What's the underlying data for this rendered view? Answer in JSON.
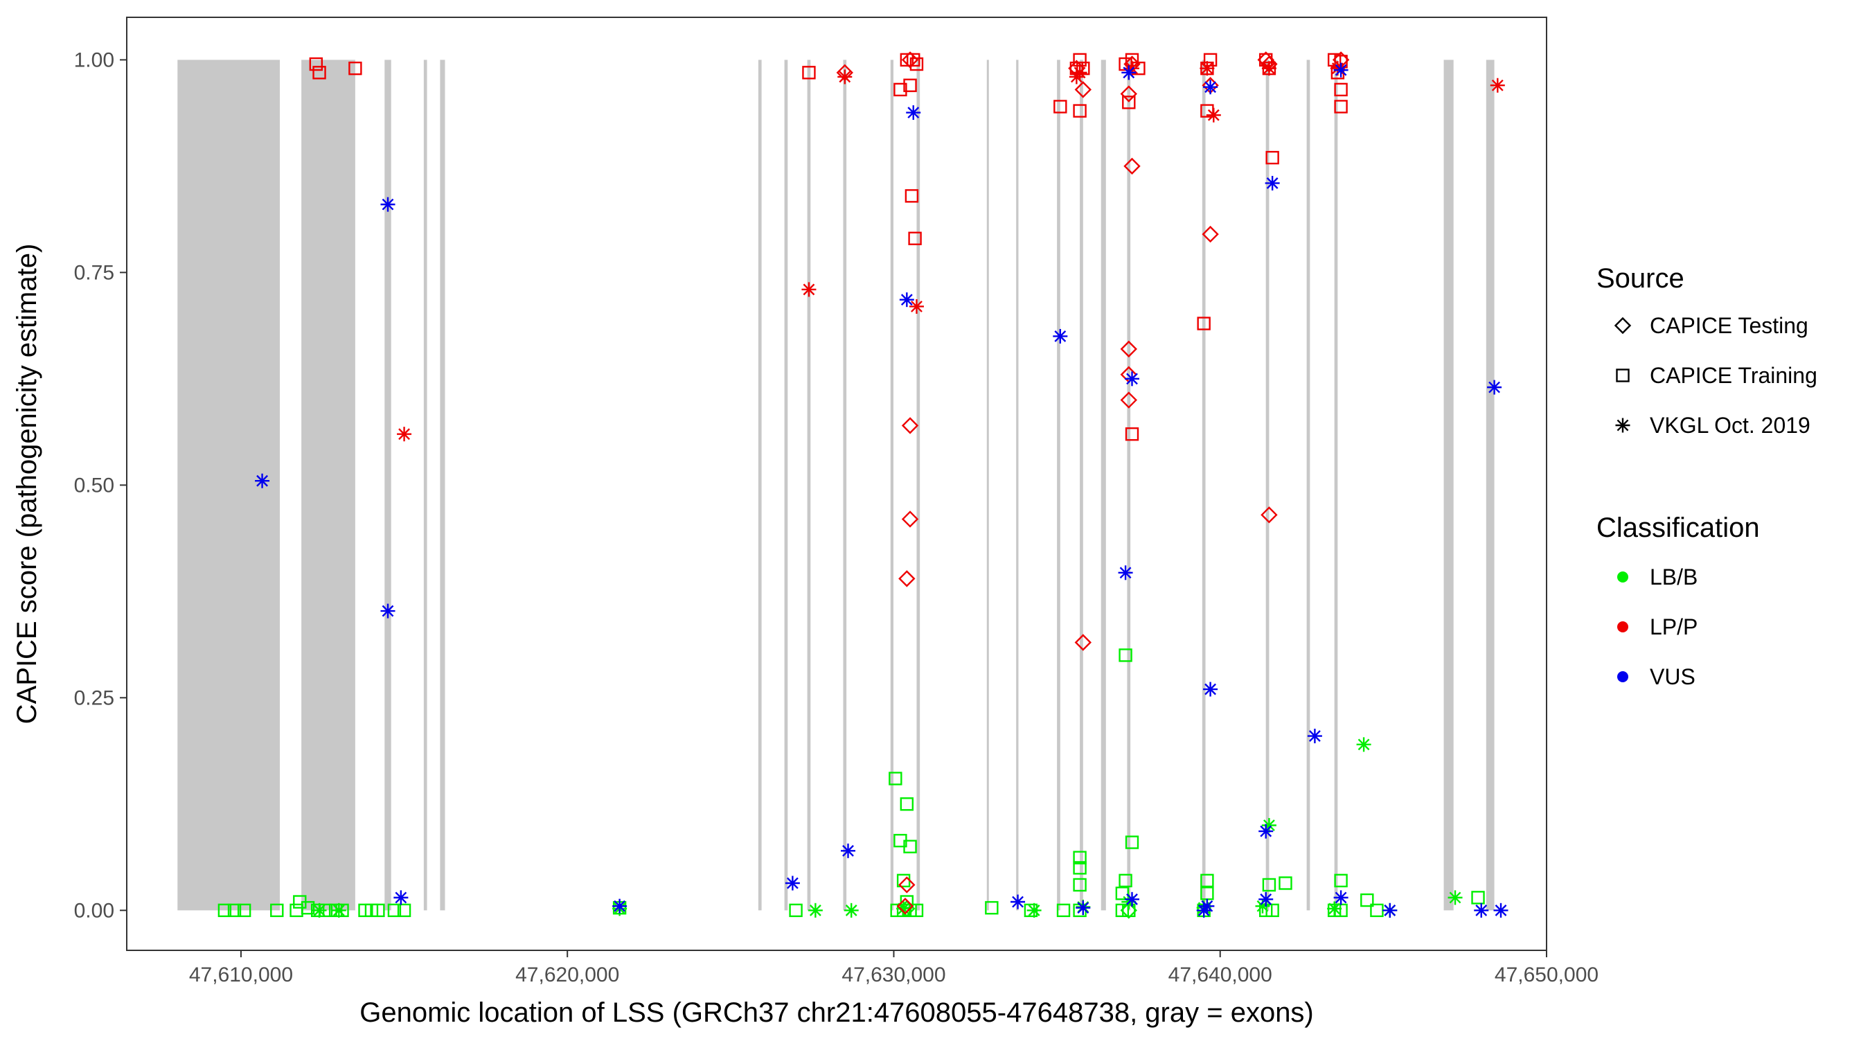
{
  "chart_data": {
    "type": "scatter",
    "xlabel": "Genomic location of LSS (GRCh37 chr21:47608055-47648738, gray = exons)",
    "ylabel": "CAPICE score (pathogenicity estimate)",
    "xlim": [
      47606500,
      47650000
    ],
    "ylim": [
      -0.047,
      1.05
    ],
    "x_ticks": [
      47610000,
      47620000,
      47630000,
      47640000,
      47650000
    ],
    "x_tick_labels": [
      "47,610,000",
      "47,620,000",
      "47,630,000",
      "47,640,000",
      "47,650,000"
    ],
    "y_ticks": [
      0,
      0.25,
      0.5,
      0.75,
      1.0
    ],
    "y_tick_labels": [
      "0.00",
      "0.25",
      "0.50",
      "0.75",
      "1.00"
    ],
    "grid": false,
    "legend_position": "right",
    "exons": [
      [
        47608055,
        47611190
      ],
      [
        47611850,
        47613500
      ],
      [
        47614400,
        47614600
      ],
      [
        47615600,
        47615700
      ],
      [
        47616100,
        47616250
      ],
      [
        47625850,
        47625950
      ],
      [
        47626650,
        47626750
      ],
      [
        47627350,
        47627450
      ],
      [
        47628450,
        47628550
      ],
      [
        47629900,
        47629990
      ],
      [
        47630700,
        47630800
      ],
      [
        47632850,
        47632890
      ],
      [
        47633750,
        47633820
      ],
      [
        47635000,
        47635100
      ],
      [
        47635700,
        47635800
      ],
      [
        47636350,
        47636500
      ],
      [
        47637150,
        47637250
      ],
      [
        47639450,
        47639550
      ],
      [
        47641400,
        47641500
      ],
      [
        47642650,
        47642750
      ],
      [
        47643500,
        47643600
      ],
      [
        47646850,
        47647150
      ],
      [
        47648150,
        47648400
      ]
    ],
    "legend": {
      "source_title": "Source",
      "source_items": [
        {
          "label": "CAPICE Testing",
          "shape": "diamond"
        },
        {
          "label": "CAPICE Training",
          "shape": "square"
        },
        {
          "label": "VKGL Oct. 2019",
          "shape": "asterisk"
        }
      ],
      "class_title": "Classification",
      "class_items": [
        {
          "label": "LB/B",
          "color": "#00ee00"
        },
        {
          "label": "LP/P",
          "color": "#ee0000"
        },
        {
          "label": "VUS",
          "color": "#0000ee"
        }
      ]
    },
    "colors": {
      "LB/B": "#00ee00",
      "LP/P": "#ee0000",
      "VUS": "#0000ee",
      "exon": "#c8c8c8"
    },
    "series": [
      {
        "classification": "LB/B",
        "source": "CAPICE Training",
        "points": [
          [
            47609500,
            0.0
          ],
          [
            47609800,
            0.0
          ],
          [
            47610100,
            0.0
          ],
          [
            47611100,
            0.0
          ],
          [
            47611700,
            0.0
          ],
          [
            47611800,
            0.01
          ],
          [
            47612050,
            0.003
          ],
          [
            47612350,
            0.0
          ],
          [
            47612600,
            0.0
          ],
          [
            47612900,
            0.0
          ],
          [
            47613100,
            0.0
          ],
          [
            47613800,
            0.0
          ],
          [
            47614000,
            0.0
          ],
          [
            47614200,
            0.0
          ],
          [
            47614700,
            0.0
          ],
          [
            47615000,
            0.0
          ],
          [
            47621600,
            0.003
          ],
          [
            47627000,
            0.0
          ],
          [
            47630050,
            0.155
          ],
          [
            47630200,
            0.082
          ],
          [
            47630400,
            0.125
          ],
          [
            47630500,
            0.075
          ],
          [
            47630300,
            0.035
          ],
          [
            47630400,
            0.01
          ],
          [
            47630100,
            0.0
          ],
          [
            47630300,
            0.0
          ],
          [
            47630500,
            0.0
          ],
          [
            47630700,
            0.0
          ],
          [
            47633000,
            0.003
          ],
          [
            47634200,
            0.0
          ],
          [
            47635200,
            0.0
          ],
          [
            47635700,
            0.062
          ],
          [
            47635700,
            0.05
          ],
          [
            47635700,
            0.03
          ],
          [
            47635700,
            0.0
          ],
          [
            47637100,
            0.3
          ],
          [
            47637300,
            0.08
          ],
          [
            47637100,
            0.035
          ],
          [
            47637000,
            0.02
          ],
          [
            47637000,
            0.0
          ],
          [
            47637200,
            0.0
          ],
          [
            47639600,
            0.035
          ],
          [
            47639600,
            0.02
          ],
          [
            47639500,
            0.0
          ],
          [
            47641500,
            0.03
          ],
          [
            47642000,
            0.032
          ],
          [
            47641400,
            0.0
          ],
          [
            47641600,
            0.0
          ],
          [
            47643700,
            0.035
          ],
          [
            47643500,
            0.0
          ],
          [
            47643700,
            0.0
          ],
          [
            47644500,
            0.012
          ],
          [
            47644800,
            0.0
          ],
          [
            47647900,
            0.015
          ]
        ]
      },
      {
        "classification": "LB/B",
        "source": "VKGL Oct. 2019",
        "points": [
          [
            47612400,
            0.0
          ],
          [
            47613000,
            0.0
          ],
          [
            47621600,
            0.002
          ],
          [
            47627600,
            0.0
          ],
          [
            47628700,
            0.0
          ],
          [
            47630300,
            0.002
          ],
          [
            47634300,
            0.0
          ],
          [
            47635800,
            0.004
          ],
          [
            47637200,
            0.01
          ],
          [
            47639500,
            0.003
          ],
          [
            47641500,
            0.1
          ],
          [
            47641300,
            0.005
          ],
          [
            47643500,
            0.002
          ],
          [
            47644400,
            0.195
          ],
          [
            47647200,
            0.015
          ],
          [
            47645200,
            0.0
          ]
        ]
      },
      {
        "classification": "LB/B",
        "source": "CAPICE Testing",
        "points": [
          [
            47630400,
            0.002
          ],
          [
            47637200,
            0.0
          ]
        ]
      },
      {
        "classification": "LP/P",
        "source": "CAPICE Training",
        "points": [
          [
            47612300,
            0.995
          ],
          [
            47612400,
            0.985
          ],
          [
            47613500,
            0.99
          ],
          [
            47627400,
            0.985
          ],
          [
            47630200,
            0.965
          ],
          [
            47630500,
            0.97
          ],
          [
            47630550,
            0.84
          ],
          [
            47630650,
            0.79
          ],
          [
            47630400,
            1.0
          ],
          [
            47630600,
            1.0
          ],
          [
            47630700,
            0.995
          ],
          [
            47635100,
            0.945
          ],
          [
            47635700,
            0.94
          ],
          [
            47635600,
            0.99
          ],
          [
            47635700,
            1.0
          ],
          [
            47635800,
            0.99
          ],
          [
            47637200,
            0.95
          ],
          [
            47637300,
            0.56
          ],
          [
            47637100,
            0.995
          ],
          [
            47637300,
            1.0
          ],
          [
            47637500,
            0.99
          ],
          [
            47639500,
            0.69
          ],
          [
            47639600,
            0.94
          ],
          [
            47639600,
            0.99
          ],
          [
            47639700,
            1.0
          ],
          [
            47641600,
            0.885
          ],
          [
            47641500,
            0.99
          ],
          [
            47641400,
            1.0
          ],
          [
            47643700,
            0.945
          ],
          [
            47643700,
            0.965
          ],
          [
            47643600,
            0.985
          ],
          [
            47643500,
            1.0
          ],
          [
            47643700,
            0.998
          ]
        ]
      },
      {
        "classification": "LP/P",
        "source": "CAPICE Testing",
        "points": [
          [
            47628500,
            0.985
          ],
          [
            47630500,
            0.57
          ],
          [
            47630500,
            0.46
          ],
          [
            47630400,
            0.39
          ],
          [
            47630400,
            0.03
          ],
          [
            47630350,
            0.005
          ],
          [
            47630500,
            1.0
          ],
          [
            47635800,
            0.965
          ],
          [
            47635800,
            0.315
          ],
          [
            47637200,
            0.96
          ],
          [
            47637300,
            0.875
          ],
          [
            47637200,
            0.66
          ],
          [
            47637200,
            0.63
          ],
          [
            47637200,
            0.6
          ],
          [
            47637300,
            0.995
          ],
          [
            47639700,
            0.97
          ],
          [
            47639700,
            0.795
          ],
          [
            47641500,
            0.465
          ],
          [
            47641500,
            0.995
          ],
          [
            47643700,
            1.0
          ],
          [
            47635600,
            0.99
          ],
          [
            47641400,
            1.0
          ]
        ]
      },
      {
        "classification": "LP/P",
        "source": "VKGL Oct. 2019",
        "points": [
          [
            47615000,
            0.56
          ],
          [
            47627400,
            0.73
          ],
          [
            47628500,
            0.98
          ],
          [
            47630700,
            0.71
          ],
          [
            47635600,
            0.98
          ],
          [
            47635700,
            0.985
          ],
          [
            47637300,
            0.99
          ],
          [
            47639800,
            0.935
          ],
          [
            47639600,
            0.99
          ],
          [
            47641500,
            0.99
          ],
          [
            47643600,
            0.99
          ],
          [
            47648500,
            0.97
          ]
        ]
      },
      {
        "classification": "VUS",
        "source": "VKGL Oct. 2019",
        "points": [
          [
            47610650,
            0.505
          ],
          [
            47614500,
            0.83
          ],
          [
            47614500,
            0.352
          ],
          [
            47614900,
            0.015
          ],
          [
            47621600,
            0.005
          ],
          [
            47626900,
            0.032
          ],
          [
            47628600,
            0.07
          ],
          [
            47630600,
            0.938
          ],
          [
            47630400,
            0.718
          ],
          [
            47633800,
            0.01
          ],
          [
            47635100,
            0.675
          ],
          [
            47635800,
            0.003
          ],
          [
            47637200,
            0.985
          ],
          [
            47637300,
            0.625
          ],
          [
            47637100,
            0.397
          ],
          [
            47637300,
            0.013
          ],
          [
            47639700,
            0.968
          ],
          [
            47639700,
            0.26
          ],
          [
            47639600,
            0.005
          ],
          [
            47639500,
            0.0
          ],
          [
            47641600,
            0.855
          ],
          [
            47641400,
            0.093
          ],
          [
            47641400,
            0.013
          ],
          [
            47642900,
            0.205
          ],
          [
            47643700,
            0.988
          ],
          [
            47643700,
            0.015
          ],
          [
            47645200,
            0.0
          ],
          [
            47648000,
            0.0
          ],
          [
            47648600,
            0.0
          ],
          [
            47648400,
            0.615
          ]
        ]
      }
    ]
  }
}
